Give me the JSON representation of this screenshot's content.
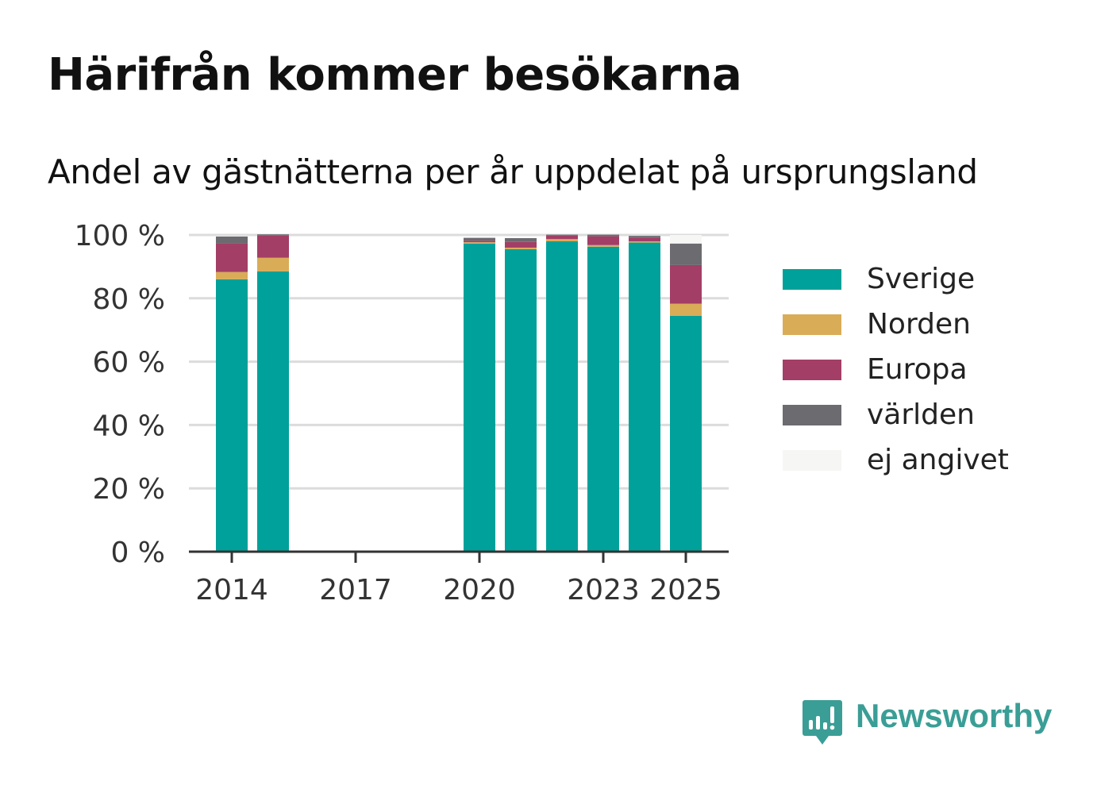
{
  "title": "Härifrån kommer besökarna",
  "subtitle": "Andel av gästnätterna per år uppdelat på ursprungsland",
  "brand": {
    "name": "Newsworthy",
    "icon": "newsworthy-logo-icon",
    "color": "#3a9e96"
  },
  "chart_data": {
    "type": "bar",
    "stacked": true,
    "title": "Härifrån kommer besökarna",
    "subtitle": "Andel av gästnätterna per år uppdelat på ursprungsland",
    "x": [
      2014,
      2015,
      2020,
      2021,
      2022,
      2023,
      2024,
      2025
    ],
    "xlim": [
      2013,
      2025.9
    ],
    "xticks": [
      2014,
      2017,
      2020,
      2023,
      2025
    ],
    "xtick_labels": [
      "2014",
      "2017",
      "2020",
      "2023",
      "2025"
    ],
    "ylim": [
      0,
      100
    ],
    "yticks": [
      0,
      20,
      40,
      60,
      80,
      100
    ],
    "ytick_labels": [
      "0 %",
      "20 %",
      "40 %",
      "60 %",
      "80 %",
      "100 %"
    ],
    "grid": true,
    "legend_position": "right",
    "series": [
      {
        "name": "Sverige",
        "color": "#00a19a",
        "values": [
          86,
          88.5,
          97.3,
          95.5,
          98,
          96.3,
          97.6,
          74.5
        ]
      },
      {
        "name": "Norden",
        "color": "#d9ac58",
        "values": [
          2.3,
          4.3,
          0.4,
          0.5,
          0.7,
          0.5,
          0.4,
          3.8
        ]
      },
      {
        "name": "Europa",
        "color": "#a33e66",
        "values": [
          9.1,
          7.0,
          0.5,
          1.8,
          1.1,
          2.8,
          1.2,
          12.2
        ]
      },
      {
        "name": "världen",
        "color": "#6b6b70",
        "values": [
          2.1,
          0.4,
          0.9,
          1.2,
          0.3,
          0.5,
          0.5,
          6.8
        ]
      },
      {
        "name": "ej angivet",
        "color": "#f6f6f4",
        "values": [
          0,
          0,
          0,
          0,
          0,
          0,
          0,
          2.7
        ]
      }
    ]
  }
}
